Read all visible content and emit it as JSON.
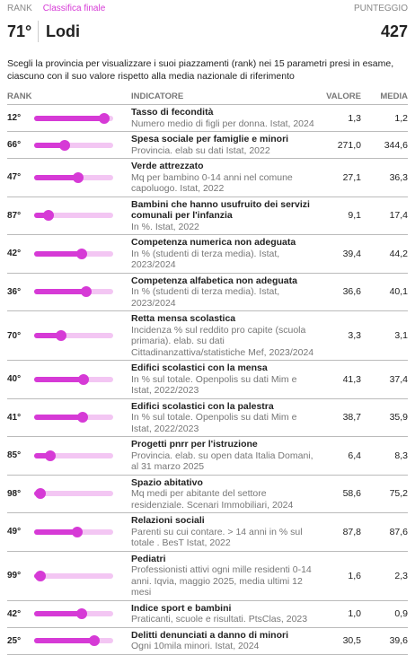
{
  "header": {
    "rank_label": "RANK",
    "section": "Classifica finale",
    "score_label": "PUNTEGGIO",
    "rank": "71°",
    "province": "Lodi",
    "score": "427"
  },
  "description": "Scegli la provincia per visualizzare i suoi piazzamenti (rank) nei 15 parametri presi in esame, ciascuno con il suo valore rispetto alla media nazionale di riferimento",
  "table": {
    "columns": [
      "RANK",
      "INDICATORE",
      "VALORE",
      "MEDIA"
    ],
    "rows": [
      {
        "rank": {
          "value": 12,
          "label": "12°"
        },
        "title": "Tasso di fecondità",
        "desc": "Numero medio di figli per donna. Istat, 2024",
        "valore": "1,3",
        "media": "1,2"
      },
      {
        "rank": {
          "value": 66,
          "label": "66°"
        },
        "title": "Spesa sociale per famiglie e minori",
        "desc": "Provincia. elab su dati Istat, 2022",
        "valore": "271,0",
        "media": "344,6"
      },
      {
        "rank": {
          "value": 47,
          "label": "47°"
        },
        "title": "Verde attrezzato",
        "desc": "Mq per bambino 0-14 anni nel comune capoluogo. Istat, 2022",
        "valore": "27,1",
        "media": "36,3"
      },
      {
        "rank": {
          "value": 87,
          "label": "87°"
        },
        "title": "Bambini che hanno usufruito dei servizi comunali per l'infanzia",
        "desc": "In %. Istat, 2022",
        "valore": "9,1",
        "media": "17,4"
      },
      {
        "rank": {
          "value": 42,
          "label": "42°"
        },
        "title": "Competenza numerica non adeguata",
        "desc": "In % (studenti di terza media). Istat, 2023/2024",
        "valore": "39,4",
        "media": "44,2"
      },
      {
        "rank": {
          "value": 36,
          "label": "36°"
        },
        "title": "Competenza alfabetica non adeguata",
        "desc": "In % (studenti di terza media). Istat, 2023/2024",
        "valore": "36,6",
        "media": "40,1"
      },
      {
        "rank": {
          "value": 70,
          "label": "70°"
        },
        "title": "Retta mensa scolastica",
        "desc": "Incidenza % sul reddito pro capite (scuola primaria). elab. su dati Cittadinanzattiva/statistiche Mef, 2023/2024",
        "valore": "3,3",
        "media": "3,1"
      },
      {
        "rank": {
          "value": 40,
          "label": "40°"
        },
        "title": "Edifici scolastici con la mensa",
        "desc": "In % sul totale. Openpolis su dati Mim e Istat, 2022/2023",
        "valore": "41,3",
        "media": "37,4"
      },
      {
        "rank": {
          "value": 41,
          "label": "41°"
        },
        "title": "Edifici scolastici con la palestra",
        "desc": "In % sul totale. Openpolis su dati Mim e Istat, 2022/2023",
        "valore": "38,7",
        "media": "35,9"
      },
      {
        "rank": {
          "value": 85,
          "label": "85°"
        },
        "title": "Progetti pnrr per l'istruzione",
        "desc": "Provincia. elab. su open data Italia Domani, al 31 marzo 2025",
        "valore": "6,4",
        "media": "8,3"
      },
      {
        "rank": {
          "value": 98,
          "label": "98°"
        },
        "title": "Spazio abitativo",
        "desc": "Mq medi per abitante del settore residenziale. Scenari Immobiliari, 2024",
        "valore": "58,6",
        "media": "75,2"
      },
      {
        "rank": {
          "value": 49,
          "label": "49°"
        },
        "title": "Relazioni sociali",
        "desc": "Parenti su cui contare. > 14 anni in % sul totale . BesT Istat, 2022",
        "valore": "87,8",
        "media": "87,6"
      },
      {
        "rank": {
          "value": 99,
          "label": "99°"
        },
        "title": "Pediatri",
        "desc": "Professionisti attivi ogni mille residenti 0-14 anni. Iqvia, maggio 2025, media ultimi 12 mesi",
        "valore": "1,6",
        "media": "2,3"
      },
      {
        "rank": {
          "value": 42,
          "label": "42°"
        },
        "title": "Indice sport e bambini",
        "desc": "Praticanti, scuole e risultati. PtsClas, 2023",
        "valore": "1,0",
        "media": "0,9"
      },
      {
        "rank": {
          "value": 25,
          "label": "25°"
        },
        "title": "Delitti denunciati a danno di minori",
        "desc": "Ogni 10mila minori. Istat, 2024",
        "valore": "30,5",
        "media": "39,6"
      }
    ]
  }
}
